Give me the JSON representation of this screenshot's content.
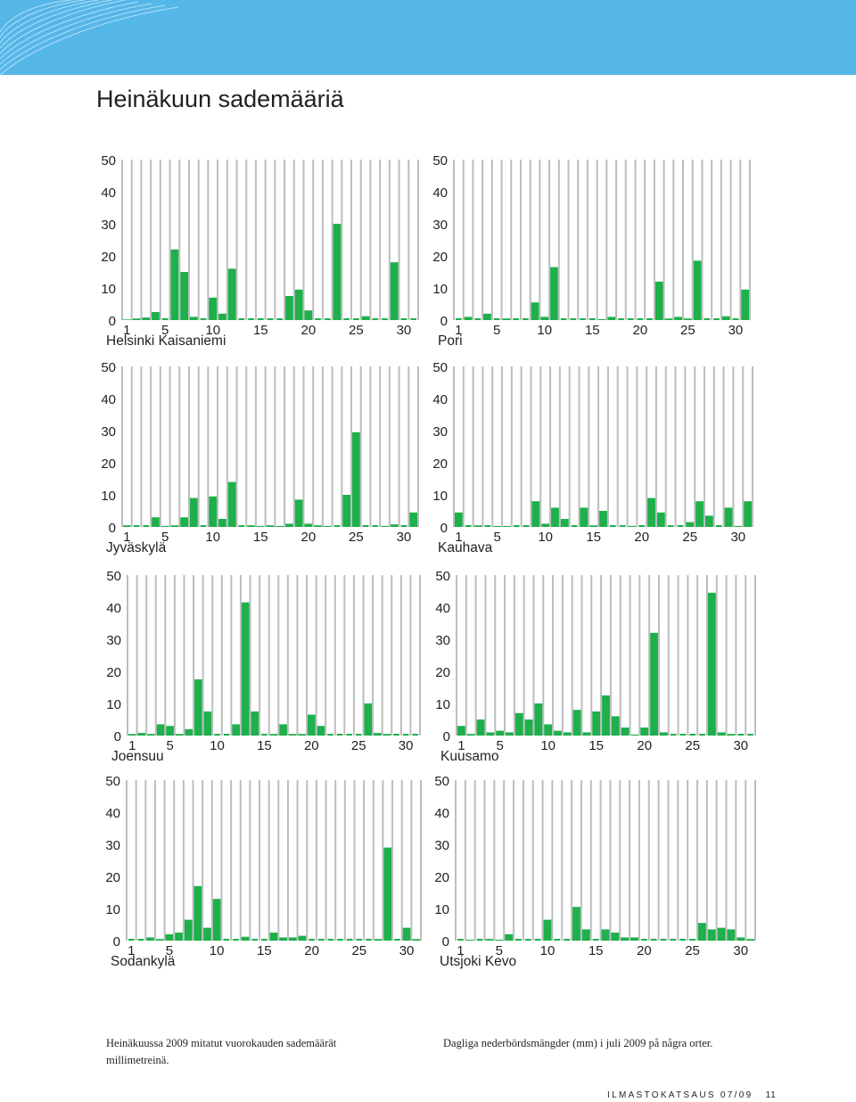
{
  "page": {
    "title": "Heinäkuun sademääriä",
    "caption_fi": "Heinäkuussa 2009 mitatut vuorokauden sademäärät millimetreinä.",
    "caption_sv": "Dagliga nederbördsmängder (mm) i juli 2009 på några orter.",
    "footer_publication": "ILMASTOKATSAUS 07/09",
    "footer_page": "11",
    "banner_color": "#55b7e8",
    "bar_color": "#1db04b",
    "grid_color": "#bcbdbf"
  },
  "chart_data": [
    {
      "type": "bar",
      "title": "Helsinki Kaisaniemi",
      "x": [
        1,
        2,
        3,
        4,
        5,
        6,
        7,
        8,
        9,
        10,
        11,
        12,
        13,
        14,
        15,
        16,
        17,
        18,
        19,
        20,
        21,
        22,
        23,
        24,
        25,
        26,
        27,
        28,
        29,
        30,
        31
      ],
      "values": [
        0.2,
        0.5,
        0.8,
        2.5,
        0,
        22,
        15,
        1,
        0,
        7,
        2,
        16,
        0,
        0,
        0,
        0,
        0,
        7.5,
        9.5,
        3,
        0,
        0,
        30,
        0,
        0,
        1.2,
        0,
        0,
        18,
        0,
        0
      ],
      "ylim": [
        0,
        50
      ],
      "yticks": [
        "0",
        "10",
        "20",
        "30",
        "40",
        "50"
      ],
      "xticks": [
        "1",
        "5",
        "10",
        "15",
        "20",
        "25",
        "30"
      ]
    },
    {
      "type": "bar",
      "title": "Pori",
      "x": [
        1,
        2,
        3,
        4,
        5,
        6,
        7,
        8,
        9,
        10,
        11,
        12,
        13,
        14,
        15,
        16,
        17,
        18,
        19,
        20,
        21,
        22,
        23,
        24,
        25,
        26,
        27,
        28,
        29,
        30,
        31
      ],
      "values": [
        0,
        1,
        0,
        2,
        0,
        0.5,
        0,
        0,
        5.5,
        1,
        16.5,
        0,
        0,
        0,
        0,
        0.3,
        1,
        0,
        0,
        0,
        0,
        12,
        0.5,
        1,
        0.5,
        18.5,
        0,
        0,
        1.2,
        0,
        9.5
      ],
      "ylim": [
        0,
        50
      ],
      "yticks": [
        "0",
        "10",
        "20",
        "30",
        "40",
        "50"
      ],
      "xticks": [
        "1",
        "5",
        "10",
        "15",
        "20",
        "25",
        "30"
      ]
    },
    {
      "type": "bar",
      "title": "Jyväskylä",
      "x": [
        1,
        2,
        3,
        4,
        5,
        6,
        7,
        8,
        9,
        10,
        11,
        12,
        13,
        14,
        15,
        16,
        17,
        18,
        19,
        20,
        21,
        22,
        23,
        24,
        25,
        26,
        27,
        28,
        29,
        30,
        31
      ],
      "values": [
        0.5,
        0,
        0,
        3,
        0.3,
        0.5,
        3,
        9,
        0,
        9.5,
        2.5,
        14,
        0,
        0.5,
        0.3,
        0.5,
        0.3,
        1,
        8.5,
        1,
        0.5,
        0.3,
        0,
        10,
        29.5,
        0,
        0,
        0.3,
        0.8,
        0,
        4.5
      ],
      "ylim": [
        0,
        50
      ],
      "yticks": [
        "0",
        "10",
        "20",
        "30",
        "40",
        "50"
      ],
      "xticks": [
        "1",
        "5",
        "10",
        "15",
        "20",
        "25",
        "30"
      ]
    },
    {
      "type": "bar",
      "title": "Kauhava",
      "x": [
        1,
        2,
        3,
        4,
        5,
        6,
        7,
        8,
        9,
        10,
        11,
        12,
        13,
        14,
        15,
        16,
        17,
        18,
        19,
        20,
        21,
        22,
        23,
        24,
        25,
        26,
        27,
        28,
        29,
        30,
        31
      ],
      "values": [
        4.5,
        0,
        0.5,
        0,
        0.3,
        0.3,
        0,
        0,
        8,
        1,
        6,
        2.5,
        0,
        6,
        0.5,
        5,
        0,
        0,
        0.3,
        0,
        9,
        4.5,
        0,
        0,
        1.5,
        8,
        3.5,
        0,
        6,
        0.3,
        8
      ],
      "ylim": [
        0,
        50
      ],
      "yticks": [
        "0",
        "10",
        "20",
        "30",
        "40",
        "50"
      ],
      "xticks": [
        "1",
        "5",
        "10",
        "15",
        "20",
        "25",
        "30"
      ]
    },
    {
      "type": "bar",
      "title": "Joensuu",
      "x": [
        1,
        2,
        3,
        4,
        5,
        6,
        7,
        8,
        9,
        10,
        11,
        12,
        13,
        14,
        15,
        16,
        17,
        18,
        19,
        20,
        21,
        22,
        23,
        24,
        25,
        26,
        27,
        28,
        29,
        30,
        31
      ],
      "values": [
        0.5,
        0.8,
        0.5,
        3.5,
        3,
        0.5,
        2,
        17.5,
        7.5,
        0,
        0,
        3.5,
        41.5,
        7.5,
        0,
        0.5,
        3.5,
        0.5,
        0.5,
        6.5,
        3,
        0,
        0,
        0,
        0,
        10,
        0.8,
        0.5,
        0,
        0,
        0
      ],
      "ylim": [
        0,
        50
      ],
      "yticks": [
        "0",
        "10",
        "20",
        "30",
        "40",
        "50"
      ],
      "xticks": [
        "1",
        "5",
        "10",
        "15",
        "20",
        "25",
        "30"
      ]
    },
    {
      "type": "bar",
      "title": "Kuusamo",
      "x": [
        1,
        2,
        3,
        4,
        5,
        6,
        7,
        8,
        9,
        10,
        11,
        12,
        13,
        14,
        15,
        16,
        17,
        18,
        19,
        20,
        21,
        22,
        23,
        24,
        25,
        26,
        27,
        28,
        29,
        30,
        31
      ],
      "values": [
        3,
        0.5,
        5,
        1,
        1.5,
        1,
        7,
        5,
        10,
        3.5,
        1.5,
        1,
        8,
        1,
        7.5,
        12.5,
        6,
        2.5,
        0.3,
        2.5,
        32,
        1,
        0,
        0,
        0,
        0,
        44.5,
        1,
        0.5,
        0,
        0
      ],
      "ylim": [
        0,
        50
      ],
      "yticks": [
        "0",
        "10",
        "20",
        "30",
        "40",
        "50"
      ],
      "xticks": [
        "1",
        "5",
        "10",
        "15",
        "20",
        "25",
        "30"
      ]
    },
    {
      "type": "bar",
      "title": "Sodankylä",
      "x": [
        1,
        2,
        3,
        4,
        5,
        6,
        7,
        8,
        9,
        10,
        11,
        12,
        13,
        14,
        15,
        16,
        17,
        18,
        19,
        20,
        21,
        22,
        23,
        24,
        25,
        26,
        27,
        28,
        29,
        30,
        31
      ],
      "values": [
        0,
        0,
        1,
        0.5,
        2,
        2.5,
        6.5,
        17,
        4,
        13,
        0,
        0,
        1.2,
        0,
        0,
        2.5,
        1,
        1,
        1.5,
        0,
        0,
        0,
        0,
        0,
        0,
        0,
        0.5,
        29,
        0,
        4,
        0.5
      ],
      "ylim": [
        0,
        50
      ],
      "yticks": [
        "0",
        "10",
        "20",
        "30",
        "40",
        "50"
      ],
      "xticks": [
        "1",
        "5",
        "10",
        "15",
        "20",
        "25",
        "30"
      ]
    },
    {
      "type": "bar",
      "title": "Utsjoki Kevo",
      "x": [
        1,
        2,
        3,
        4,
        5,
        6,
        7,
        8,
        9,
        10,
        11,
        12,
        13,
        14,
        15,
        16,
        17,
        18,
        19,
        20,
        21,
        22,
        23,
        24,
        25,
        26,
        27,
        28,
        29,
        30,
        31
      ],
      "values": [
        0,
        0.3,
        0,
        0.5,
        0.3,
        2,
        0,
        0,
        0,
        6.5,
        0,
        0,
        10.5,
        3.5,
        0,
        3.5,
        2.5,
        1,
        1,
        0,
        0,
        0,
        0,
        0,
        0,
        5.5,
        3.5,
        4,
        3.5,
        1,
        0.5
      ],
      "ylim": [
        0,
        50
      ],
      "yticks": [
        "0",
        "10",
        "20",
        "30",
        "40",
        "50"
      ],
      "xticks": [
        "1",
        "5",
        "10",
        "15",
        "20",
        "25",
        "30"
      ]
    }
  ]
}
